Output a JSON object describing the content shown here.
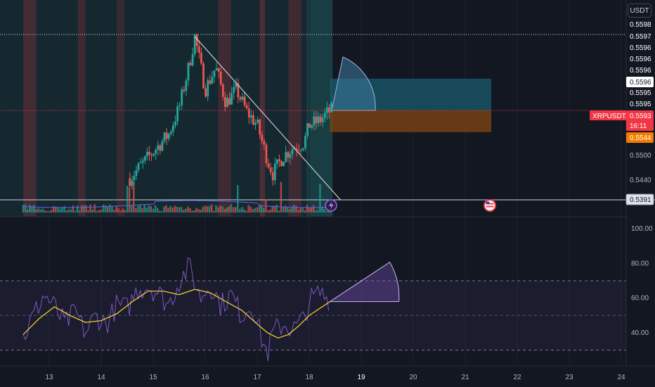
{
  "toolbar": {
    "currency": "USDT"
  },
  "chart_data": [
    {
      "type": "candlestick",
      "title": "",
      "ylabel": "",
      "symbol_label": "XRPUSDT.P",
      "last_price": "0.5593",
      "countdown": "16:11",
      "price_ticks": [
        "0.5598",
        "0.5597",
        "0.5596",
        "0.5596",
        "0.5596",
        "0.5596",
        "0.5595",
        "0.5595",
        "0.5500",
        "0.5440"
      ],
      "price_labels": {
        "crosshair": "0.5596",
        "stop_level": "0.5544",
        "support_level": "0.5391"
      },
      "x_ticks": [
        "13",
        "14",
        "15",
        "16",
        "17",
        "18",
        "19",
        "20",
        "21",
        "22",
        "23",
        "24"
      ],
      "x_range": [
        12.5,
        24.2
      ],
      "close_path": [
        [
          12.5,
          0.5395
        ],
        [
          13.0,
          0.54
        ],
        [
          13.5,
          0.5405
        ],
        [
          14.0,
          0.5405
        ],
        [
          14.4,
          0.542
        ],
        [
          14.7,
          0.546
        ],
        [
          15.0,
          0.55
        ],
        [
          15.3,
          0.554
        ],
        [
          15.5,
          0.56
        ],
        [
          15.7,
          0.57
        ],
        [
          15.8,
          0.576
        ],
        [
          16.0,
          0.564
        ],
        [
          16.2,
          0.569
        ],
        [
          16.4,
          0.561
        ],
        [
          16.6,
          0.564
        ],
        [
          16.8,
          0.559
        ],
        [
          17.0,
          0.556
        ],
        [
          17.2,
          0.548
        ],
        [
          17.3,
          0.545
        ],
        [
          17.5,
          0.549
        ],
        [
          17.7,
          0.551
        ],
        [
          17.9,
          0.552
        ],
        [
          18.0,
          0.556
        ],
        [
          18.2,
          0.557
        ],
        [
          18.4,
          0.5593
        ]
      ],
      "trendline": {
        "from": [
          15.8,
          0.576
        ],
        "to": [
          18.6,
          0.5391
        ]
      },
      "position": {
        "x_start": 18.4,
        "x_end": 21.5,
        "entry": 0.5593,
        "target": 0.5665,
        "stop": 0.5544
      },
      "volume_avg_color": "#5b5bd6",
      "colors": {
        "up": "#26a69a",
        "down": "#ef5350",
        "target_zone": "#1b5b6b",
        "stop_zone": "#7a4312",
        "symbol_tag": "#f23645",
        "stop_tag": "#f57c00",
        "rsi_line": "#7e57c2",
        "rsi_ma": "#fdd835"
      }
    },
    {
      "type": "line",
      "title": "",
      "ylabel": "",
      "y_ticks": [
        "100.00",
        "80.00",
        "60.00",
        "40.00"
      ],
      "ylim": [
        25,
        102
      ],
      "band": [
        30,
        70
      ],
      "midline": 50,
      "series": [
        {
          "values": [
            [
              12.5,
              37
            ],
            [
              12.7,
              50
            ],
            [
              12.9,
              62
            ],
            [
              13.1,
              55
            ],
            [
              13.3,
              45
            ],
            [
              13.5,
              52
            ],
            [
              13.7,
              40
            ],
            [
              13.9,
              50
            ],
            [
              14.1,
              45
            ],
            [
              14.3,
              56
            ],
            [
              14.5,
              54
            ],
            [
              14.7,
              65
            ],
            [
              14.9,
              67
            ],
            [
              15.1,
              63
            ],
            [
              15.3,
              56
            ],
            [
              15.5,
              70
            ],
            [
              15.7,
              78
            ],
            [
              15.9,
              60
            ],
            [
              16.1,
              68
            ],
            [
              16.3,
              56
            ],
            [
              16.5,
              62
            ],
            [
              16.7,
              50
            ],
            [
              16.9,
              57
            ],
            [
              17.1,
              35
            ],
            [
              17.2,
              28
            ],
            [
              17.3,
              40
            ],
            [
              17.5,
              45
            ],
            [
              17.7,
              42
            ],
            [
              17.9,
              48
            ],
            [
              18.0,
              58
            ],
            [
              18.2,
              63
            ],
            [
              18.4,
              59
            ]
          ]
        },
        {
          "values": [
            [
              12.5,
              39
            ],
            [
              12.8,
              48
            ],
            [
              13.1,
              55
            ],
            [
              13.4,
              50
            ],
            [
              13.7,
              46
            ],
            [
              14.0,
              47
            ],
            [
              14.3,
              51
            ],
            [
              14.6,
              58
            ],
            [
              14.9,
              64
            ],
            [
              15.2,
              64
            ],
            [
              15.5,
              62
            ],
            [
              15.8,
              65
            ],
            [
              16.1,
              63
            ],
            [
              16.4,
              58
            ],
            [
              16.7,
              53
            ],
            [
              17.0,
              45
            ],
            [
              17.2,
              40
            ],
            [
              17.4,
              37
            ],
            [
              17.6,
              39
            ],
            [
              17.8,
              44
            ],
            [
              18.0,
              50
            ],
            [
              18.2,
              54
            ],
            [
              18.4,
              58
            ]
          ]
        }
      ]
    }
  ]
}
